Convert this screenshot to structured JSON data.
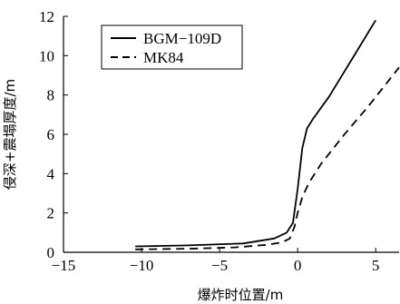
{
  "chart_data": {
    "type": "line",
    "title": "",
    "xlabel": "爆炸时位置/m",
    "ylabel": "侵深+震塌厚度/m",
    "xlim": [
      -15,
      6.5
    ],
    "ylim": [
      0,
      12
    ],
    "xticks": [
      -15,
      -10,
      -5,
      0,
      5
    ],
    "yticks": [
      0,
      2,
      4,
      6,
      8,
      10,
      12
    ],
    "x_tick_labels": [
      "−15",
      "−10",
      "−5",
      "0",
      "5"
    ],
    "y_tick_labels": [
      "0",
      "2",
      "4",
      "6",
      "8",
      "10",
      "12"
    ],
    "grid": false,
    "legend_position": "top-left",
    "series": [
      {
        "name": "BGM−109D",
        "style": "solid",
        "color": "#000000",
        "x": [
          -10.4,
          -7,
          -3.5,
          -1.5,
          -0.7,
          -0.3,
          0,
          0.3,
          0.6,
          1,
          2,
          3,
          4,
          5
        ],
        "y": [
          0.3,
          0.35,
          0.45,
          0.7,
          1.0,
          1.5,
          3.2,
          5.3,
          6.3,
          6.8,
          7.9,
          9.2,
          10.5,
          11.8
        ]
      },
      {
        "name": "MK84",
        "style": "dashed",
        "color": "#000000",
        "x": [
          -10.4,
          -7,
          -4,
          -2,
          -1,
          -0.5,
          -0.2,
          0,
          0.3,
          0.7,
          1.5,
          3,
          4.5,
          6.5
        ],
        "y": [
          0.15,
          0.18,
          0.25,
          0.38,
          0.5,
          0.7,
          1.3,
          2.0,
          2.8,
          3.5,
          4.5,
          6.0,
          7.4,
          9.4
        ]
      }
    ]
  }
}
